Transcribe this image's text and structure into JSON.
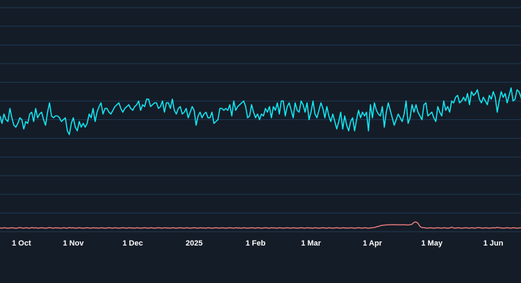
{
  "chart_data": {
    "type": "line",
    "title": "",
    "xlabel": "",
    "ylabel": "",
    "x_tick_labels": [
      "1 Oct",
      "1 Nov",
      "1 Dec",
      "2025",
      "1 Feb",
      "1 Mar",
      "1 Apr",
      "1 May",
      "1 Jun"
    ],
    "x_tick_dates": [
      "2024-10-01",
      "2024-11-01",
      "2024-12-01",
      "2025-01-01",
      "2025-02-01",
      "2025-03-01",
      "2025-04-01",
      "2025-05-01",
      "2025-06-01"
    ],
    "xlim": [
      "2024-09-25",
      "2025-06-15"
    ],
    "ylim": [
      0,
      12
    ],
    "grid": true,
    "legend": "none",
    "colors": {
      "background": "#141c27",
      "grid": "#1f3b57",
      "series_a": "#13e6f2",
      "series_b": "#f08080",
      "text": "#ffffff"
    },
    "series": [
      {
        "name": "",
        "color": "#13e6f2",
        "values": [
          6.2,
          5.8,
          6.3,
          6.0,
          5.9,
          6.6,
          6.1,
          5.7,
          5.6,
          5.8,
          6.1,
          6.0,
          5.5,
          5.9,
          5.8,
          6.3,
          6.4,
          5.9,
          6.6,
          6.1,
          6.3,
          6.4,
          6.0,
          5.7,
          6.4,
          6.9,
          6.2,
          6.1,
          6.2,
          6.2,
          6.1,
          5.9,
          6.0,
          6.1,
          5.4,
          5.2,
          5.8,
          6.1,
          5.6,
          5.4,
          5.9,
          5.6,
          5.8,
          5.6,
          5.8,
          6.3,
          6.1,
          6.6,
          5.9,
          6.4,
          6.7,
          6.9,
          6.3,
          6.6,
          6.6,
          6.4,
          6.3,
          6.5,
          6.7,
          6.8,
          6.9,
          6.6,
          6.4,
          6.6,
          6.7,
          6.8,
          6.6,
          6.5,
          6.7,
          6.8,
          7.0,
          6.5,
          6.8,
          6.7,
          7.1,
          7.1,
          6.7,
          6.8,
          6.9,
          6.9,
          6.6,
          6.7,
          7.0,
          6.4,
          6.9,
          6.9,
          6.6,
          7.1,
          6.5,
          6.3,
          6.6,
          6.7,
          6.3,
          6.4,
          6.6,
          6.1,
          6.4,
          6.7,
          6.5,
          5.7,
          6.2,
          6.4,
          6.1,
          6.3,
          6.4,
          6.1,
          6.1,
          6.4,
          5.8,
          5.9,
          6.0,
          6.6,
          6.6,
          6.5,
          6.6,
          6.5,
          6.8,
          6.2,
          7.0,
          6.5,
          6.7,
          6.8,
          6.9,
          7.0,
          6.7,
          6.1,
          6.2,
          6.8,
          6.4,
          6.1,
          6.3,
          6.0,
          6.3,
          6.2,
          6.6,
          6.4,
          6.7,
          6.1,
          6.7,
          6.5,
          6.9,
          6.3,
          7.0,
          7.0,
          6.2,
          6.7,
          6.9,
          6.5,
          6.1,
          6.9,
          6.5,
          6.4,
          7.0,
          6.8,
          6.4,
          6.9,
          6.0,
          6.4,
          7.0,
          6.3,
          6.1,
          6.5,
          6.9,
          6.6,
          6.1,
          6.7,
          6.2,
          5.9,
          6.3,
          5.9,
          5.5,
          5.9,
          6.4,
          5.5,
          6.2,
          5.7,
          5.4,
          5.9,
          6.1,
          5.4,
          6.0,
          6.5,
          6.1,
          6.4,
          6.2,
          6.4,
          5.4,
          6.8,
          6.1,
          6.9,
          6.5,
          6.3,
          6.2,
          6.7,
          5.6,
          6.4,
          6.9,
          6.5,
          6.1,
          5.7,
          6.0,
          6.3,
          6.1,
          5.9,
          6.3,
          7.0,
          5.8,
          6.1,
          6.8,
          6.4,
          6.8,
          6.4,
          6.2,
          6.0,
          6.8,
          6.9,
          6.2,
          6.3,
          6.4,
          6.1,
          5.9,
          6.7,
          6.4,
          6.2,
          7.0,
          6.5,
          6.7,
          6.4,
          7.0,
          6.9,
          7.2,
          7.3,
          6.9,
          7.0,
          7.2,
          7.0,
          7.4,
          6.8,
          7.5,
          7.3,
          7.4,
          7.6,
          7.1,
          6.9,
          7.2,
          7.0,
          6.8,
          7.3,
          7.1,
          7.5,
          7.2,
          6.4,
          7.0,
          7.5,
          7.2,
          7.4,
          6.9,
          7.3,
          7.7,
          7.0,
          7.1,
          7.6,
          7.5,
          7.2,
          6.8,
          7.3,
          7.5,
          7.1,
          7.4,
          7.3,
          7.0,
          7.4,
          7.4,
          7.2,
          6.9,
          7.5,
          7.6,
          7.3,
          7.1,
          7.6,
          7.4,
          7.2,
          6.7
        ]
      },
      {
        "name": "",
        "color": "#f08080",
        "values": [
          0.2,
          0.19,
          0.21,
          0.2,
          0.19,
          0.2,
          0.21,
          0.2,
          0.18,
          0.2,
          0.22,
          0.2,
          0.19,
          0.21,
          0.2,
          0.19,
          0.22,
          0.2,
          0.21,
          0.19,
          0.2,
          0.21,
          0.2,
          0.19,
          0.2,
          0.22,
          0.2,
          0.19,
          0.21,
          0.2,
          0.2,
          0.19,
          0.21,
          0.2,
          0.19,
          0.22,
          0.2,
          0.21,
          0.19,
          0.2,
          0.21,
          0.2,
          0.19,
          0.2,
          0.21,
          0.2,
          0.19,
          0.21,
          0.2,
          0.2,
          0.19,
          0.21,
          0.2,
          0.19,
          0.2,
          0.21,
          0.2,
          0.19,
          0.21,
          0.2,
          0.19,
          0.2,
          0.21,
          0.2,
          0.19,
          0.21,
          0.2,
          0.2,
          0.19,
          0.21,
          0.2,
          0.19,
          0.2,
          0.21,
          0.2,
          0.19,
          0.21,
          0.2,
          0.19,
          0.2,
          0.21,
          0.2,
          0.19,
          0.21,
          0.2,
          0.2,
          0.19,
          0.21,
          0.2,
          0.19,
          0.2,
          0.21,
          0.2,
          0.19,
          0.21,
          0.2,
          0.19,
          0.2,
          0.21,
          0.2,
          0.19,
          0.21,
          0.2,
          0.2,
          0.19,
          0.21,
          0.2,
          0.19,
          0.2,
          0.21,
          0.2,
          0.19,
          0.21,
          0.2,
          0.19,
          0.2,
          0.21,
          0.2,
          0.19,
          0.21,
          0.2,
          0.2,
          0.19,
          0.21,
          0.2,
          0.19,
          0.2,
          0.21,
          0.2,
          0.19,
          0.21,
          0.2,
          0.19,
          0.2,
          0.21,
          0.2,
          0.19,
          0.21,
          0.2,
          0.2,
          0.19,
          0.21,
          0.2,
          0.19,
          0.2,
          0.21,
          0.2,
          0.19,
          0.21,
          0.2,
          0.19,
          0.2,
          0.21,
          0.2,
          0.19,
          0.21,
          0.2,
          0.2,
          0.19,
          0.21,
          0.2,
          0.19,
          0.2,
          0.21,
          0.2,
          0.19,
          0.21,
          0.2,
          0.19,
          0.2,
          0.21,
          0.2,
          0.19,
          0.21,
          0.2,
          0.2,
          0.19,
          0.21,
          0.2,
          0.19,
          0.2,
          0.21,
          0.2,
          0.19,
          0.21,
          0.2,
          0.19,
          0.2,
          0.21,
          0.22,
          0.26,
          0.28,
          0.32,
          0.34,
          0.35,
          0.36,
          0.37,
          0.37,
          0.38,
          0.37,
          0.38,
          0.37,
          0.36,
          0.38,
          0.37,
          0.36,
          0.36,
          0.37,
          0.4,
          0.5,
          0.52,
          0.45,
          0.28,
          0.22,
          0.21,
          0.2,
          0.19,
          0.21,
          0.2,
          0.19,
          0.2,
          0.21,
          0.2,
          0.19,
          0.21,
          0.2,
          0.19,
          0.2,
          0.24,
          0.2,
          0.19,
          0.21,
          0.2,
          0.19,
          0.2,
          0.21,
          0.2,
          0.19,
          0.21,
          0.2,
          0.19,
          0.22,
          0.21,
          0.2,
          0.19,
          0.21,
          0.2,
          0.19,
          0.2,
          0.21,
          0.2,
          0.23,
          0.21,
          0.2,
          0.19,
          0.2,
          0.21,
          0.2,
          0.19,
          0.21,
          0.2,
          0.19,
          0.2,
          0.21,
          0.2,
          0.19,
          0.21,
          0.2,
          0.19,
          0.2,
          0.21,
          0.2,
          0.19,
          0.21,
          0.2,
          0.19,
          0.2,
          0.21,
          0.2,
          0.19,
          0.21,
          0.2,
          0.19,
          0.2,
          0.21,
          0.2,
          0.19
        ]
      }
    ]
  }
}
